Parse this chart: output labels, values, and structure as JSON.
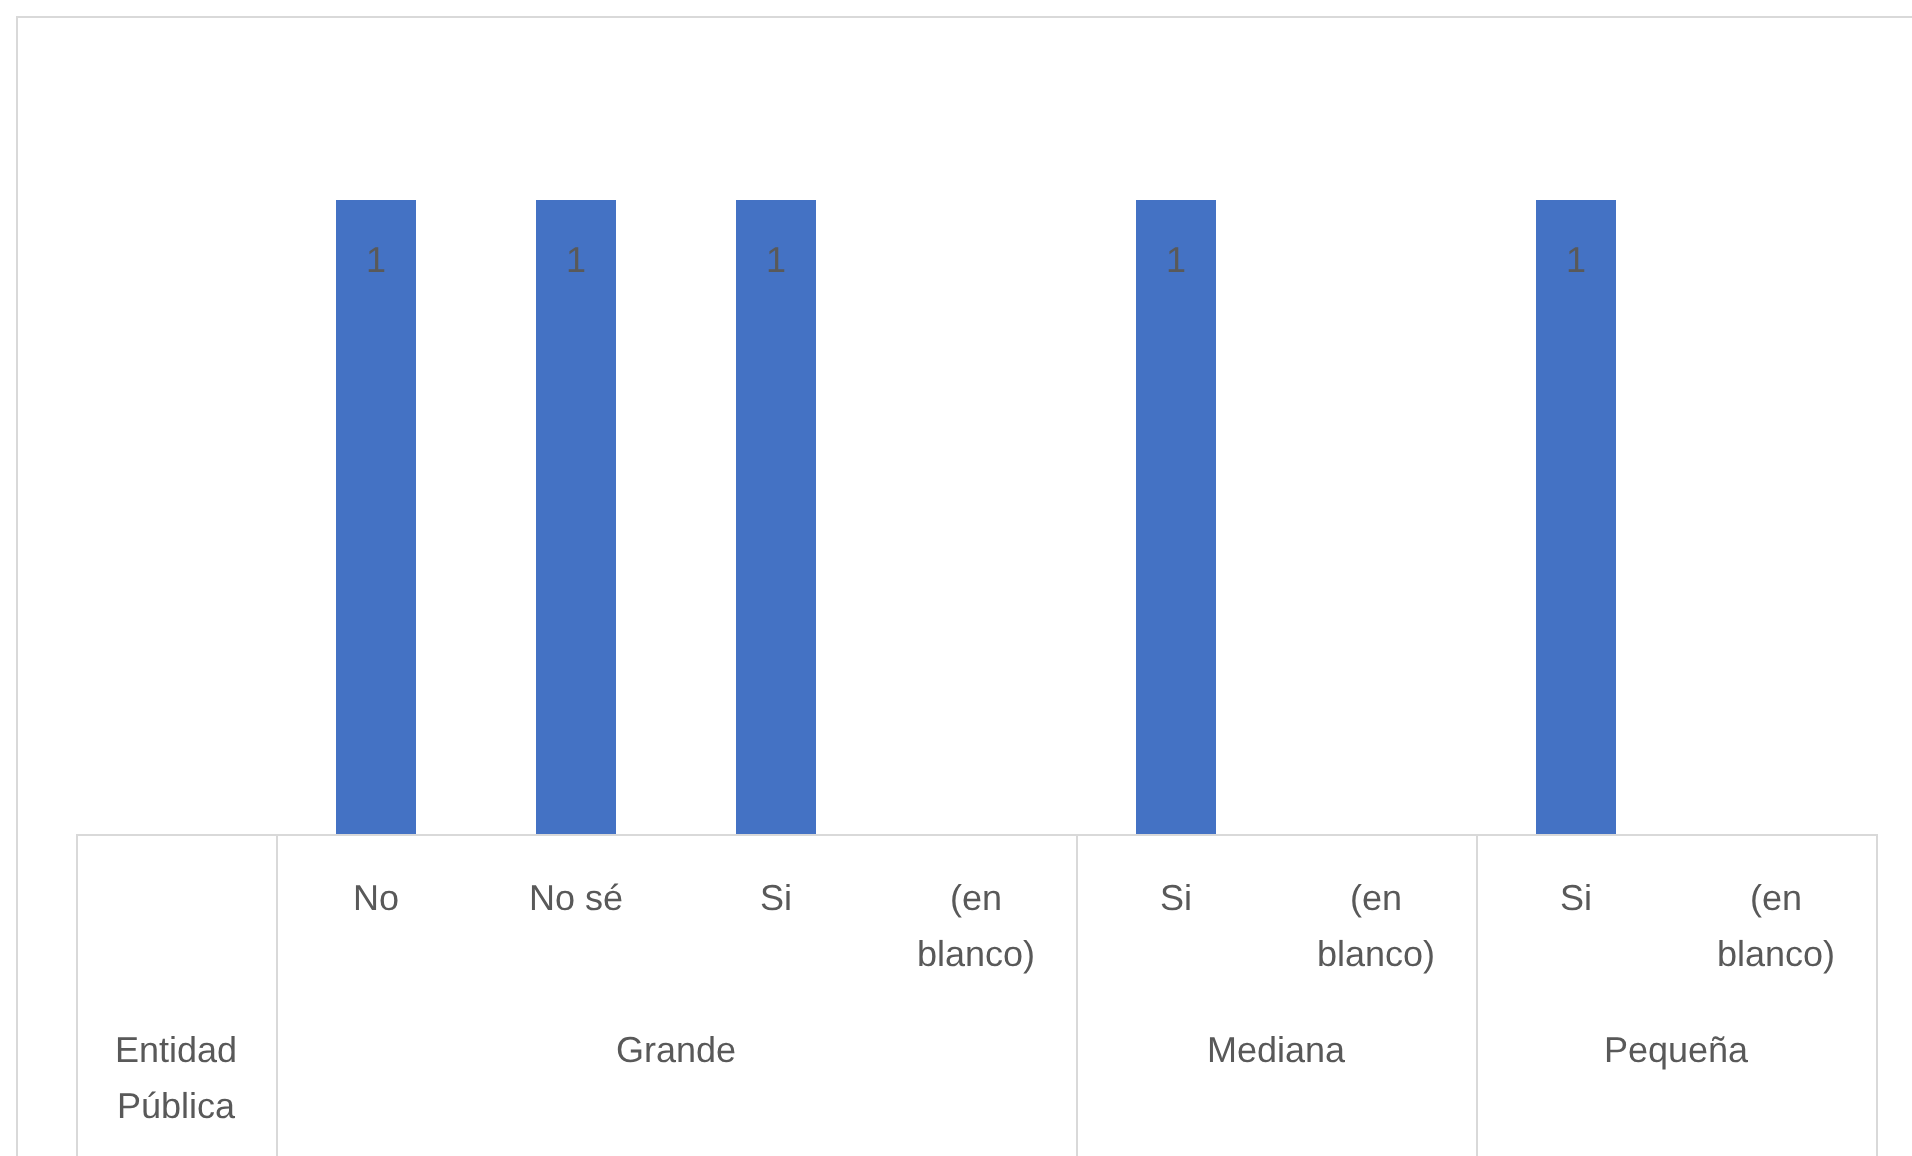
{
  "chart_data": {
    "type": "bar",
    "categories": [
      null,
      "No",
      "No sé",
      "Si",
      "(en blanco)",
      "Si",
      "(en blanco)",
      "Si",
      "(en blanco)"
    ],
    "values": [
      null,
      1,
      1,
      1,
      null,
      1,
      null,
      1,
      null
    ],
    "color": "#4472c4",
    "data_labels": true,
    "annotations": [
      "Entidad Pública",
      "Grande",
      "Mediana",
      "Pequeña"
    ]
  }
}
